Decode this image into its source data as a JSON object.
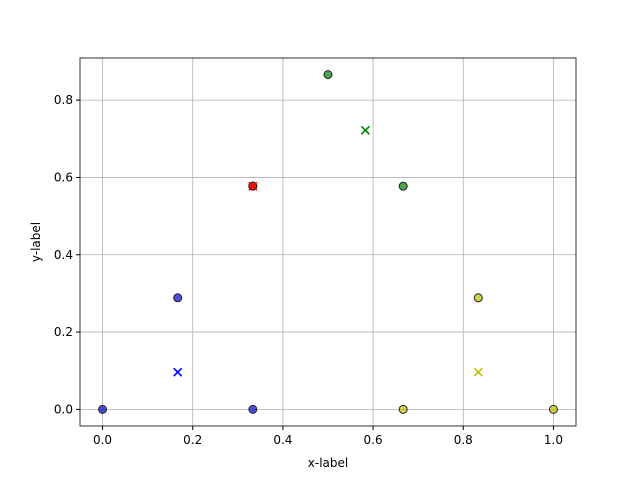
{
  "chart_data": {
    "type": "scatter",
    "x_label": "x-label",
    "y_label": "y-label",
    "xlim": [
      -0.05,
      1.05
    ],
    "ylim": [
      -0.043,
      0.909
    ],
    "xticks": [
      {
        "value": 0,
        "label": "0.0"
      },
      0.2,
      0.4,
      0.6,
      0.8,
      {
        "value": 1,
        "label": "1.0"
      }
    ],
    "yticks": [
      {
        "value": 0,
        "label": "0.0"
      },
      0.2,
      0.4,
      0.6,
      0.8
    ],
    "grid": true,
    "series": [
      {
        "color": "#0000cc",
        "marker": "o",
        "x": [
          0,
          0.1667,
          0.3333
        ],
        "values": [
          0,
          0.2887,
          0
        ]
      },
      {
        "color": "#007f00",
        "marker": "o",
        "x": [
          0.3333,
          0.5,
          0.6667
        ],
        "values": [
          0.5774,
          0.866,
          0.5774
        ]
      },
      {
        "color": "#bfbf00",
        "marker": "o",
        "x": [
          0.6667,
          0.8333,
          1
        ],
        "values": [
          0,
          0.2887,
          0
        ]
      },
      {
        "color": "#ff0000",
        "marker": "o",
        "x": [
          0.3333
        ],
        "values": [
          0.5774
        ]
      },
      {
        "color": "#0000ff",
        "marker": "x",
        "x": [
          0.1667
        ],
        "values": [
          0.0962
        ]
      },
      {
        "color": "#008000",
        "marker": "x",
        "x": [
          0.583
        ],
        "values": [
          0.722
        ]
      },
      {
        "color": "#bfbf00",
        "marker": "x",
        "x": [
          0.8333
        ],
        "values": [
          0.0962
        ]
      },
      {
        "color": "#ff0000",
        "marker": "x",
        "x": [
          0.3333
        ],
        "values": [
          0.5774
        ]
      }
    ]
  }
}
